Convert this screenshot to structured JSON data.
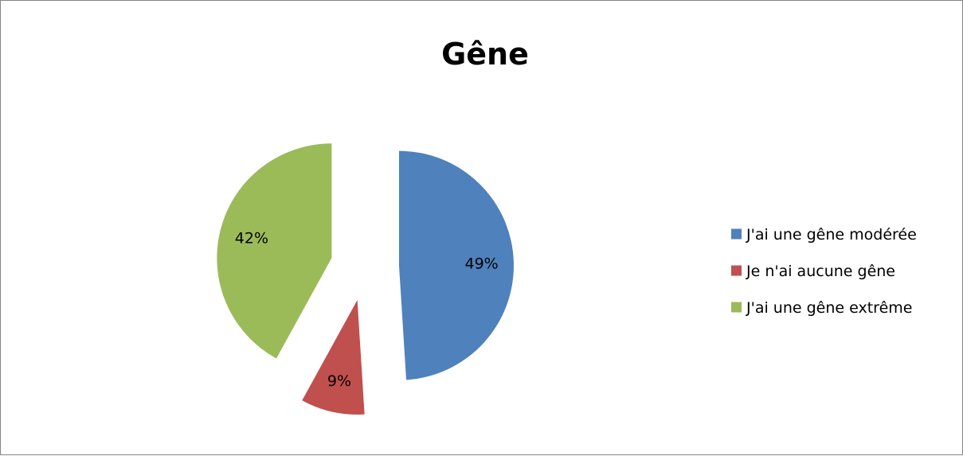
{
  "chart_data": {
    "type": "pie",
    "title": "Gêne",
    "categories": [
      "J'ai une gêne modérée",
      "Je n'ai aucune gêne",
      "J'ai une gêne extrême"
    ],
    "values": [
      49,
      9,
      42
    ],
    "data_labels": [
      "49%",
      "9%",
      "42%"
    ],
    "colors": [
      "#4F81BD",
      "#C0504D",
      "#9BBB59"
    ],
    "exploded": true,
    "legend_position": "right"
  }
}
